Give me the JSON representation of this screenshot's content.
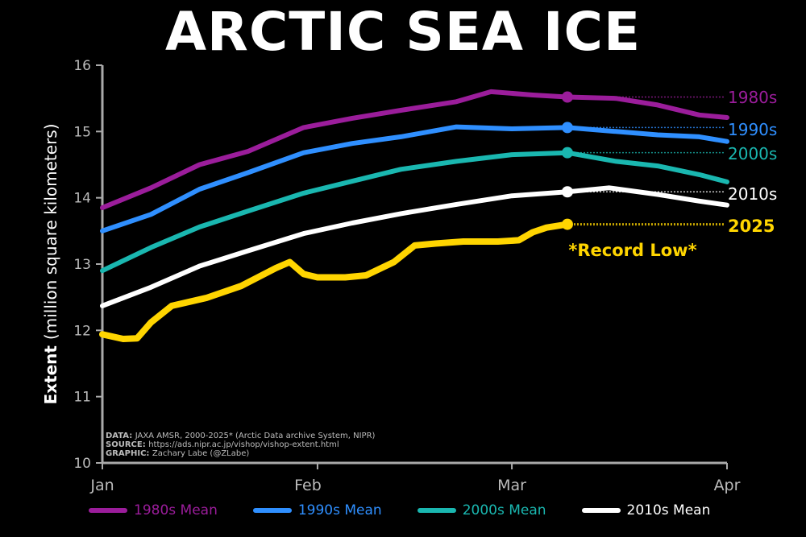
{
  "chart_data": {
    "type": "line",
    "title": "ARCTIC SEA ICE",
    "ylabel_bold": "Extent",
    "ylabel": "(million square kilometers)",
    "ylim": [
      10,
      16
    ],
    "yticks": [
      10,
      11,
      12,
      13,
      14,
      15,
      16
    ],
    "xticks": [
      "Jan",
      "Feb",
      "Mar",
      "Apr"
    ],
    "x_unit": "day of year (Jan 1 = 0)",
    "grid": false,
    "legend_position": "bottom",
    "series": [
      {
        "name": "1980s Mean",
        "label": "1980s",
        "color": "#9b1d9b",
        "x": [
          0,
          7,
          14,
          21,
          29,
          36,
          43,
          51,
          56,
          62,
          67,
          74,
          80,
          86,
          90
        ],
        "y": [
          13.85,
          14.15,
          14.5,
          14.7,
          15.06,
          15.2,
          15.32,
          15.45,
          15.6,
          15.55,
          15.52,
          15.5,
          15.4,
          15.25,
          15.21
        ]
      },
      {
        "name": "1990s Mean",
        "label": "1990s",
        "color": "#2f8fff",
        "x": [
          0,
          7,
          14,
          21,
          29,
          36,
          43,
          51,
          59,
          67,
          74,
          80,
          86,
          90
        ],
        "y": [
          13.5,
          13.75,
          14.13,
          14.38,
          14.68,
          14.82,
          14.92,
          15.07,
          15.04,
          15.06,
          15.0,
          14.95,
          14.92,
          14.85
        ]
      },
      {
        "name": "2000s Mean",
        "label": "2000s",
        "color": "#1ab7b0",
        "x": [
          0,
          7,
          14,
          21,
          29,
          36,
          43,
          51,
          59,
          67,
          74,
          80,
          86,
          90
        ],
        "y": [
          12.9,
          13.25,
          13.56,
          13.8,
          14.07,
          14.25,
          14.43,
          14.55,
          14.65,
          14.68,
          14.55,
          14.48,
          14.35,
          14.24
        ]
      },
      {
        "name": "2010s Mean",
        "label": "2010s",
        "color": "#ffffff",
        "x": [
          0,
          7,
          14,
          21,
          29,
          36,
          43,
          51,
          59,
          67,
          73,
          80,
          86,
          90
        ],
        "y": [
          12.37,
          12.65,
          12.97,
          13.2,
          13.46,
          13.62,
          13.76,
          13.9,
          14.03,
          14.09,
          14.15,
          14.05,
          13.95,
          13.89
        ]
      },
      {
        "name": "2025",
        "label": "2025",
        "color": "#ffd500",
        "x": [
          0,
          3,
          5,
          7,
          10,
          15,
          20,
          25,
          27,
          29,
          31,
          35,
          38,
          42,
          45,
          48,
          52,
          57,
          60,
          62,
          64,
          67
        ],
        "y": [
          11.94,
          11.87,
          11.88,
          12.12,
          12.37,
          12.49,
          12.67,
          12.94,
          13.03,
          12.85,
          12.8,
          12.8,
          12.83,
          13.03,
          13.28,
          13.31,
          13.34,
          13.34,
          13.36,
          13.48,
          13.55,
          13.6
        ]
      }
    ],
    "annotation": "*Record Low*",
    "credits": [
      {
        "key": "DATA:",
        "text": "JAXA AMSR, 2000-2025* (Arctic Data archive System, NIPR)"
      },
      {
        "key": "SOURCE:",
        "text": "https://ads.nipr.ac.jp/vishop/vishop-extent.html"
      },
      {
        "key": "GRAPHIC:",
        "text": "Zachary Labe (@ZLabe)"
      }
    ]
  }
}
